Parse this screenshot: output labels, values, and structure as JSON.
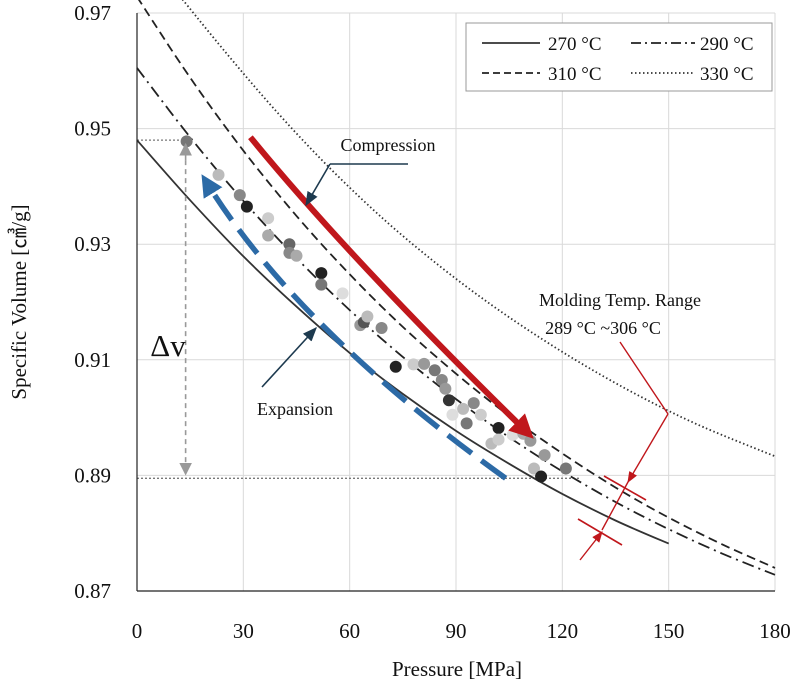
{
  "chart_data": {
    "type": "line",
    "title": "",
    "xlabel": "Pressure [MPa]",
    "ylabel": "Specific Volume [㎤/g]",
    "xlim": [
      0,
      180
    ],
    "ylim": [
      0.87,
      0.97
    ],
    "xticks": [
      "0",
      "30",
      "60",
      "90",
      "120",
      "150",
      "180"
    ],
    "yticks": [
      "0.87",
      "0.89",
      "0.91",
      "0.93",
      "0.95",
      "0.97"
    ],
    "grid": true,
    "legend_position": "top-right",
    "series": [
      {
        "name": "270 °C",
        "style": "solid",
        "color": "#333333",
        "x": [
          0,
          15,
          30,
          45,
          60,
          75,
          90,
          105,
          120,
          135,
          150
        ],
        "y": [
          0.948,
          0.9376,
          0.9279,
          0.9192,
          0.9112,
          0.9041,
          0.8977,
          0.892,
          0.8868,
          0.8822,
          0.8782
        ]
      },
      {
        "name": "290 °C",
        "style": "dash-dot",
        "color": "#222222",
        "x": [
          0,
          15,
          30,
          45,
          60,
          75,
          90,
          105,
          120,
          135,
          150,
          165,
          180
        ],
        "y": [
          0.9605,
          0.9485,
          0.9375,
          0.9276,
          0.9186,
          0.9105,
          0.9032,
          0.8966,
          0.8907,
          0.8854,
          0.8807,
          0.8765,
          0.8728
        ]
      },
      {
        "name": "310 °C",
        "style": "dashed",
        "color": "#222222",
        "x": [
          0,
          15,
          30,
          45,
          60,
          75,
          90,
          105,
          120,
          135,
          150,
          165,
          180
        ],
        "y": [
          0.9728,
          0.9588,
          0.9462,
          0.9349,
          0.9248,
          0.9157,
          0.9076,
          0.9003,
          0.8938,
          0.8879,
          0.8827,
          0.8781,
          0.874
        ]
      },
      {
        "name": "330 °C",
        "style": "dotted",
        "color": "#333333",
        "x": [
          10,
          25,
          40,
          55,
          70,
          85,
          100,
          115,
          130,
          145,
          160,
          180
        ],
        "y": [
          0.9745,
          0.9632,
          0.9525,
          0.9428,
          0.9341,
          0.9264,
          0.9195,
          0.9133,
          0.9077,
          0.9027,
          0.8983,
          0.8933
        ]
      }
    ],
    "scatter_points": [
      {
        "x": 14,
        "y": 0.9478,
        "shade": "#777777"
      },
      {
        "x": 23,
        "y": 0.942,
        "shade": "#bbbbbb"
      },
      {
        "x": 29,
        "y": 0.9385,
        "shade": "#888888"
      },
      {
        "x": 31,
        "y": 0.9365,
        "shade": "#222222"
      },
      {
        "x": 37,
        "y": 0.9345,
        "shade": "#cccccc"
      },
      {
        "x": 37,
        "y": 0.9315,
        "shade": "#aaaaaa"
      },
      {
        "x": 43,
        "y": 0.93,
        "shade": "#666666"
      },
      {
        "x": 43,
        "y": 0.9285,
        "shade": "#888888"
      },
      {
        "x": 45,
        "y": 0.928,
        "shade": "#aaaaaa"
      },
      {
        "x": 52,
        "y": 0.925,
        "shade": "#222222"
      },
      {
        "x": 52,
        "y": 0.923,
        "shade": "#777777"
      },
      {
        "x": 58,
        "y": 0.9215,
        "shade": "#dddddd"
      },
      {
        "x": 63,
        "y": 0.916,
        "shade": "#999999"
      },
      {
        "x": 64,
        "y": 0.9165,
        "shade": "#555555"
      },
      {
        "x": 65,
        "y": 0.9175,
        "shade": "#bbbbbb"
      },
      {
        "x": 69,
        "y": 0.9155,
        "shade": "#888888"
      },
      {
        "x": 73,
        "y": 0.9088,
        "shade": "#222222"
      },
      {
        "x": 78,
        "y": 0.9092,
        "shade": "#cccccc"
      },
      {
        "x": 81,
        "y": 0.9093,
        "shade": "#999999"
      },
      {
        "x": 84,
        "y": 0.9082,
        "shade": "#777777"
      },
      {
        "x": 86,
        "y": 0.9065,
        "shade": "#888888"
      },
      {
        "x": 87,
        "y": 0.905,
        "shade": "#999999"
      },
      {
        "x": 88,
        "y": 0.903,
        "shade": "#333333"
      },
      {
        "x": 89,
        "y": 0.9005,
        "shade": "#dddddd"
      },
      {
        "x": 92,
        "y": 0.9015,
        "shade": "#bbbbbb"
      },
      {
        "x": 93,
        "y": 0.899,
        "shade": "#777777"
      },
      {
        "x": 95,
        "y": 0.9025,
        "shade": "#888888"
      },
      {
        "x": 97,
        "y": 0.9005,
        "shade": "#cccccc"
      },
      {
        "x": 100,
        "y": 0.8955,
        "shade": "#bbbbbb"
      },
      {
        "x": 102,
        "y": 0.8982,
        "shade": "#222222"
      },
      {
        "x": 102,
        "y": 0.8962,
        "shade": "#cccccc"
      },
      {
        "x": 106,
        "y": 0.897,
        "shade": "#dddddd"
      },
      {
        "x": 109,
        "y": 0.8972,
        "shade": "#aaaaaa"
      },
      {
        "x": 111,
        "y": 0.896,
        "shade": "#999999"
      },
      {
        "x": 112,
        "y": 0.8912,
        "shade": "#bbbbbb"
      },
      {
        "x": 114,
        "y": 0.8898,
        "shade": "#222222"
      },
      {
        "x": 115,
        "y": 0.8935,
        "shade": "#999999"
      },
      {
        "x": 121,
        "y": 0.8912,
        "shade": "#777777"
      }
    ],
    "annotations": {
      "compression": "Compression",
      "expansion": "Expansion",
      "delta_v": "Δv",
      "molding_line1": "Molding  Temp. Range",
      "molding_line2": "289 °C ~306 °C"
    },
    "reference_lines": {
      "upper_y": 0.948,
      "lower_y": 0.8895,
      "x": 14
    }
  },
  "colors": {
    "compression_arrow": "#c0171c",
    "expansion_arrow": "#2c6aa6",
    "molding_marker": "#c0171c",
    "annotation_arrow": "#1d3a4f",
    "grid": "#d9d9d9"
  }
}
